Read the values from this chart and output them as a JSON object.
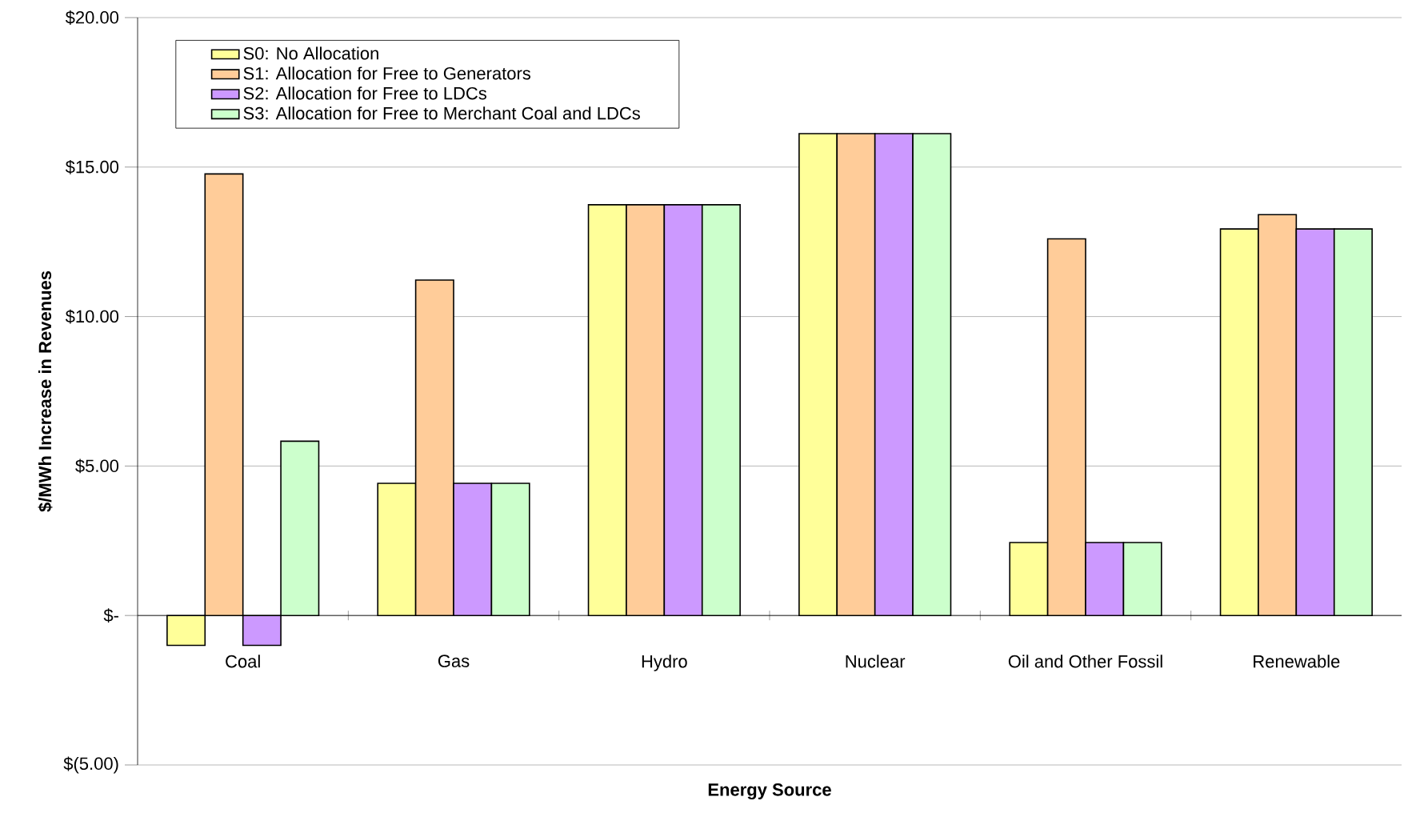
{
  "chart_data": {
    "type": "bar",
    "xlabel": "Energy Source",
    "ylabel": "$/MWh Increase in Revenues",
    "categories": [
      "Coal",
      "Gas",
      "Hydro",
      "Nuclear",
      "Oil and Other Fossil",
      "Renewable"
    ],
    "series": [
      {
        "name": "S0: No Allocation",
        "color": "#ffff99",
        "values": [
          -1.0,
          4.42,
          13.74,
          16.12,
          2.44,
          12.93
        ]
      },
      {
        "name": "S1: Allocation for Free to Generators",
        "color": "#ffcc99",
        "values": [
          14.77,
          11.22,
          13.74,
          16.12,
          12.6,
          13.41
        ]
      },
      {
        "name": "S2: Allocation for Free to LDCs",
        "color": "#cc99ff",
        "values": [
          -1.0,
          4.42,
          13.74,
          16.12,
          2.44,
          12.93
        ]
      },
      {
        "name": "S3: Allocation for Free to Merchant Coal and LDCs",
        "color": "#ccffcc",
        "values": [
          5.83,
          4.42,
          13.74,
          16.12,
          2.44,
          12.93
        ]
      }
    ],
    "ylim": [
      -5,
      20
    ],
    "yticks": [
      {
        "value": -5,
        "label": "$(5.00)"
      },
      {
        "value": 0,
        "label": "$-"
      },
      {
        "value": 5,
        "label": "$5.00"
      },
      {
        "value": 10,
        "label": "$10.00"
      },
      {
        "value": 15,
        "label": "$15.00"
      },
      {
        "value": 20,
        "label": "$20.00"
      }
    ],
    "grid": "y",
    "legend": "top left"
  }
}
